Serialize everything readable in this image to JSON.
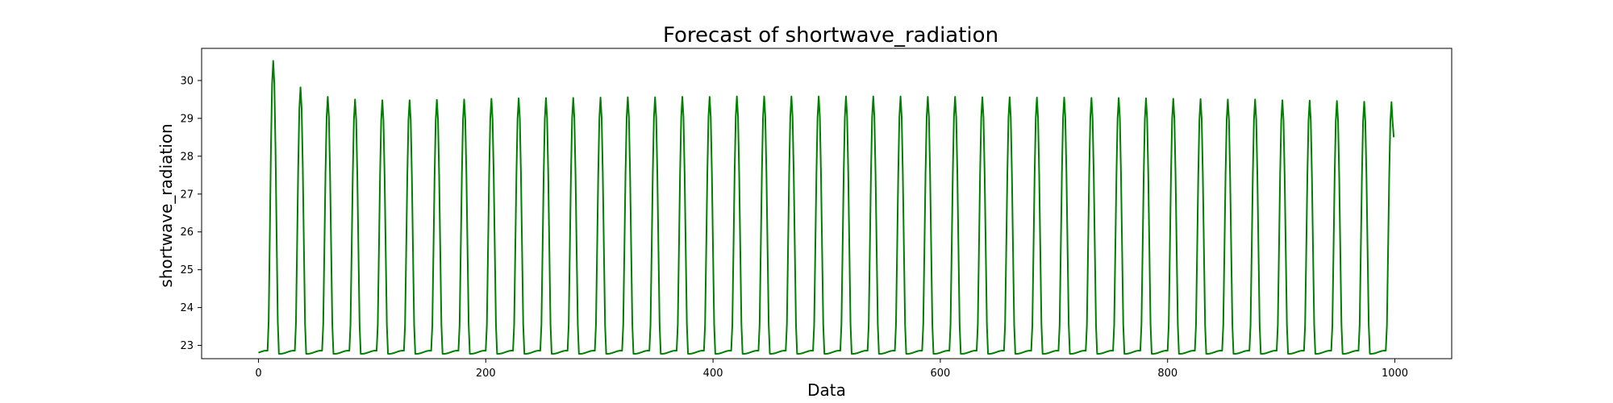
{
  "chart_data": {
    "type": "line",
    "title": "Forecast of shortwave_radiation",
    "xlabel": "Data",
    "ylabel": "shortwave_radiation",
    "xlim": [
      -50,
      1050
    ],
    "ylim": [
      22.65,
      30.85
    ],
    "xticks": [
      0,
      200,
      400,
      600,
      800,
      1000
    ],
    "yticks": [
      23,
      24,
      25,
      26,
      27,
      28,
      29,
      30
    ],
    "grid": false,
    "line_color": "#008000",
    "series": [
      {
        "period": 24,
        "baseline": 22.82,
        "start_x": 0,
        "end_x": 999,
        "end_value": 28.5,
        "peaks": [
          {
            "x": 13,
            "y": 30.52
          },
          {
            "x": 37,
            "y": 29.82
          },
          {
            "x": 61,
            "y": 29.57
          },
          {
            "x": 85,
            "y": 29.5
          },
          {
            "x": 109,
            "y": 29.48
          },
          {
            "x": 133,
            "y": 29.48
          },
          {
            "x": 157,
            "y": 29.49
          },
          {
            "x": 181,
            "y": 29.5
          },
          {
            "x": 205,
            "y": 29.52
          },
          {
            "x": 229,
            "y": 29.53
          },
          {
            "x": 253,
            "y": 29.54
          },
          {
            "x": 277,
            "y": 29.54
          },
          {
            "x": 301,
            "y": 29.55
          },
          {
            "x": 325,
            "y": 29.56
          },
          {
            "x": 349,
            "y": 29.56
          },
          {
            "x": 373,
            "y": 29.57
          },
          {
            "x": 397,
            "y": 29.57
          },
          {
            "x": 421,
            "y": 29.58
          },
          {
            "x": 445,
            "y": 29.58
          },
          {
            "x": 469,
            "y": 29.58
          },
          {
            "x": 493,
            "y": 29.58
          },
          {
            "x": 517,
            "y": 29.58
          },
          {
            "x": 541,
            "y": 29.58
          },
          {
            "x": 565,
            "y": 29.58
          },
          {
            "x": 589,
            "y": 29.57
          },
          {
            "x": 613,
            "y": 29.57
          },
          {
            "x": 637,
            "y": 29.56
          },
          {
            "x": 661,
            "y": 29.56
          },
          {
            "x": 685,
            "y": 29.55
          },
          {
            "x": 709,
            "y": 29.55
          },
          {
            "x": 733,
            "y": 29.54
          },
          {
            "x": 757,
            "y": 29.54
          },
          {
            "x": 781,
            "y": 29.53
          },
          {
            "x": 805,
            "y": 29.52
          },
          {
            "x": 829,
            "y": 29.51
          },
          {
            "x": 853,
            "y": 29.5
          },
          {
            "x": 877,
            "y": 29.5
          },
          {
            "x": 901,
            "y": 29.48
          },
          {
            "x": 925,
            "y": 29.47
          },
          {
            "x": 949,
            "y": 29.46
          },
          {
            "x": 973,
            "y": 29.44
          },
          {
            "x": 997,
            "y": 29.43
          }
        ]
      }
    ]
  }
}
